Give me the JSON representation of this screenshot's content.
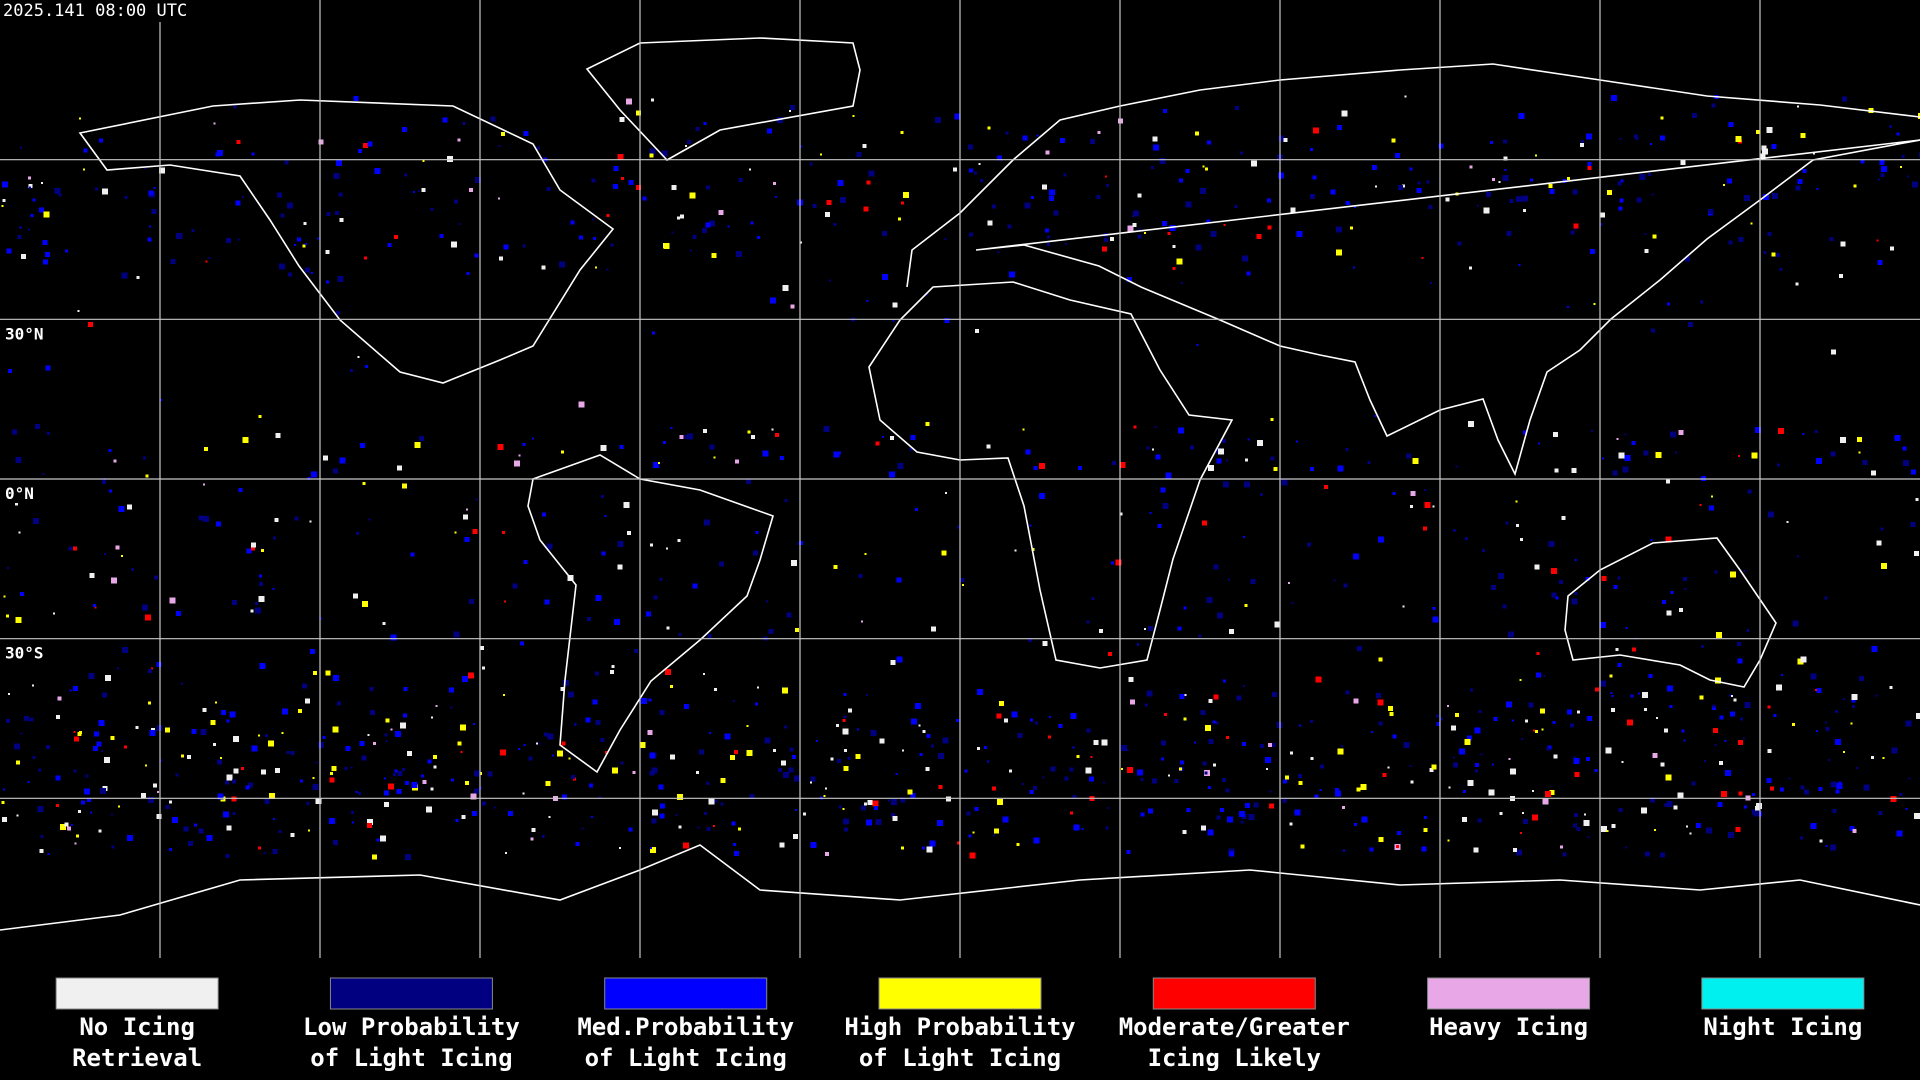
{
  "header": {
    "title": "2025.141 08:00 UTC"
  },
  "map": {
    "lat_labels": [
      "30°N",
      "0°N",
      "30°S"
    ]
  },
  "legend": {
    "items": [
      {
        "lines": [
          "No Icing",
          "Retrieval"
        ],
        "color": "#f0f0f0"
      },
      {
        "lines": [
          "Low Probability",
          "of Light Icing"
        ],
        "color": "#000080"
      },
      {
        "lines": [
          "Med.Probability",
          "of Light Icing"
        ],
        "color": "#0000ff"
      },
      {
        "lines": [
          "High Probability",
          "of Light Icing"
        ],
        "color": "#ffff00"
      },
      {
        "lines": [
          "Moderate/Greater",
          "Icing Likely"
        ],
        "color": "#ff0000"
      },
      {
        "lines": [
          "Heavy Icing"
        ],
        "color": "#e8a8e8"
      },
      {
        "lines": [
          "Night Icing"
        ],
        "color": "#00f0f0"
      }
    ]
  }
}
